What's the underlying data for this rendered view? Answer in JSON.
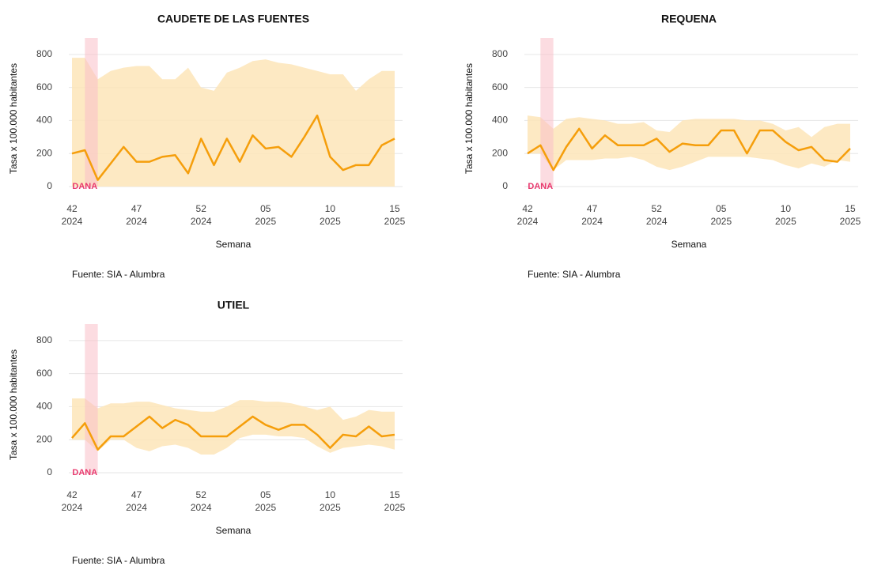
{
  "chart_data": [
    {
      "type": "line",
      "title": "CAUDETE DE LAS FUENTES",
      "ylabel": "Tasa x 100.000 habitantes",
      "xlabel": "Semana",
      "source": "Fuente: SIA - Alumbra",
      "annotation": "DANA",
      "highlight_x": [
        1,
        2
      ],
      "categories": [
        "42\n2024",
        null,
        null,
        null,
        null,
        "47\n2024",
        null,
        null,
        null,
        null,
        "52\n2024",
        null,
        null,
        null,
        null,
        "05\n2025",
        null,
        null,
        null,
        null,
        "10\n2025",
        null,
        null,
        null,
        null,
        "15\n2025"
      ],
      "values": [
        200,
        220,
        40,
        140,
        240,
        150,
        150,
        180,
        190,
        80,
        290,
        130,
        290,
        150,
        310,
        230,
        240,
        180,
        300,
        430,
        180,
        100,
        130,
        130,
        250,
        290
      ],
      "band_upper": [
        780,
        780,
        650,
        700,
        720,
        730,
        730,
        650,
        650,
        720,
        600,
        580,
        690,
        720,
        760,
        770,
        750,
        740,
        720,
        700,
        680,
        680,
        580,
        650,
        700,
        700
      ],
      "band_lower": [
        0,
        0,
        0,
        0,
        0,
        0,
        0,
        0,
        0,
        0,
        0,
        0,
        0,
        0,
        0,
        0,
        0,
        0,
        0,
        0,
        0,
        0,
        0,
        0,
        0,
        0
      ],
      "color": "#f59e0b",
      "band_color": "#fde5b8",
      "highlight_color": "#f9c0c8",
      "annotation_color": "#e8386d",
      "ylim": [
        -60,
        900
      ],
      "yticks": [
        0,
        200,
        400,
        600,
        800
      ],
      "grid": true
    },
    {
      "type": "line",
      "title": "REQUENA",
      "ylabel": "Tasa x 100.000 habitantes",
      "xlabel": "Semana",
      "source": "Fuente: SIA - Alumbra",
      "annotation": "DANA",
      "highlight_x": [
        1,
        2
      ],
      "categories": [
        "42\n2024",
        null,
        null,
        null,
        null,
        "47\n2024",
        null,
        null,
        null,
        null,
        "52\n2024",
        null,
        null,
        null,
        null,
        "05\n2025",
        null,
        null,
        null,
        null,
        "10\n2025",
        null,
        null,
        null,
        null,
        "15\n2025"
      ],
      "values": [
        200,
        250,
        100,
        240,
        350,
        230,
        310,
        250,
        250,
        250,
        290,
        210,
        260,
        250,
        250,
        340,
        340,
        200,
        340,
        340,
        270,
        220,
        240,
        160,
        150,
        230
      ],
      "band_upper": [
        430,
        420,
        350,
        410,
        420,
        410,
        400,
        380,
        380,
        390,
        340,
        330,
        400,
        410,
        410,
        410,
        410,
        400,
        400,
        380,
        340,
        360,
        300,
        360,
        380,
        380
      ],
      "band_lower": [
        200,
        200,
        100,
        160,
        160,
        160,
        170,
        170,
        180,
        160,
        120,
        100,
        120,
        150,
        180,
        180,
        180,
        180,
        170,
        160,
        130,
        110,
        140,
        120,
        160,
        150
      ],
      "color": "#f59e0b",
      "band_color": "#fde5b8",
      "highlight_color": "#f9c0c8",
      "annotation_color": "#e8386d",
      "ylim": [
        -60,
        900
      ],
      "yticks": [
        0,
        200,
        400,
        600,
        800
      ],
      "grid": true
    },
    {
      "type": "line",
      "title": "UTIEL",
      "ylabel": "Tasa x 100.000 habitantes",
      "xlabel": "Semana",
      "source": "Fuente: SIA - Alumbra",
      "annotation": "DANA",
      "highlight_x": [
        1,
        2
      ],
      "categories": [
        "42\n2024",
        null,
        null,
        null,
        null,
        "47\n2024",
        null,
        null,
        null,
        null,
        "52\n2024",
        null,
        null,
        null,
        null,
        "05\n2025",
        null,
        null,
        null,
        null,
        "10\n2025",
        null,
        null,
        null,
        null,
        "15\n2025"
      ],
      "values": [
        210,
        300,
        140,
        220,
        220,
        280,
        340,
        270,
        320,
        290,
        220,
        220,
        220,
        280,
        340,
        290,
        260,
        290,
        290,
        230,
        150,
        230,
        220,
        280,
        220,
        230
      ],
      "band_upper": [
        450,
        450,
        390,
        420,
        420,
        430,
        430,
        410,
        390,
        380,
        370,
        370,
        400,
        440,
        440,
        430,
        430,
        420,
        400,
        380,
        400,
        320,
        340,
        380,
        370,
        370
      ],
      "band_lower": [
        200,
        200,
        130,
        200,
        200,
        150,
        130,
        160,
        170,
        150,
        110,
        110,
        150,
        210,
        230,
        230,
        220,
        220,
        210,
        160,
        120,
        150,
        160,
        170,
        160,
        140
      ],
      "color": "#f59e0b",
      "band_color": "#fde5b8",
      "highlight_color": "#f9c0c8",
      "annotation_color": "#e8386d",
      "ylim": [
        -60,
        900
      ],
      "yticks": [
        0,
        200,
        400,
        600,
        800
      ],
      "grid": true
    }
  ]
}
